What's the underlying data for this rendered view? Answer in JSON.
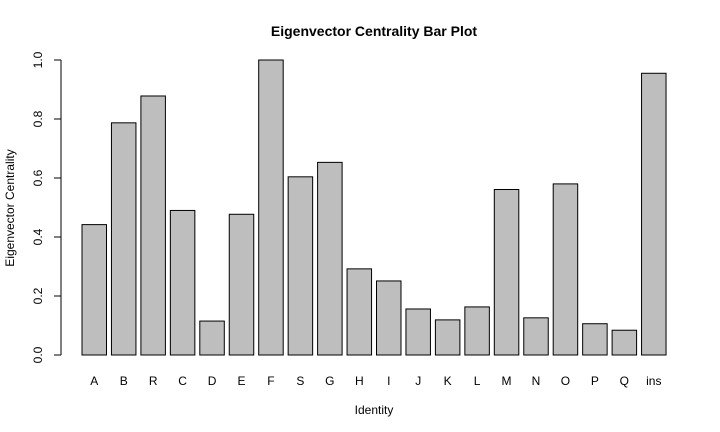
{
  "chart_data": {
    "type": "bar",
    "title": "Eigenvector Centrality Bar Plot",
    "xlabel": "Identity",
    "ylabel": "Eigenvector Centrality",
    "categories": [
      "A",
      "B",
      "R",
      "C",
      "D",
      "E",
      "F",
      "S",
      "G",
      "H",
      "I",
      "J",
      "K",
      "L",
      "M",
      "N",
      "O",
      "P",
      "Q",
      "ins"
    ],
    "values": [
      0.442,
      0.787,
      0.878,
      0.49,
      0.115,
      0.477,
      1.0,
      0.604,
      0.653,
      0.292,
      0.251,
      0.156,
      0.119,
      0.163,
      0.561,
      0.126,
      0.58,
      0.106,
      0.084,
      0.955
    ],
    "ylim": [
      0,
      1.0
    ],
    "yticks": [
      "0.0",
      "0.2",
      "0.4",
      "0.6",
      "0.8",
      "1.0"
    ],
    "bar_color": "#bebebe",
    "grid": false
  }
}
